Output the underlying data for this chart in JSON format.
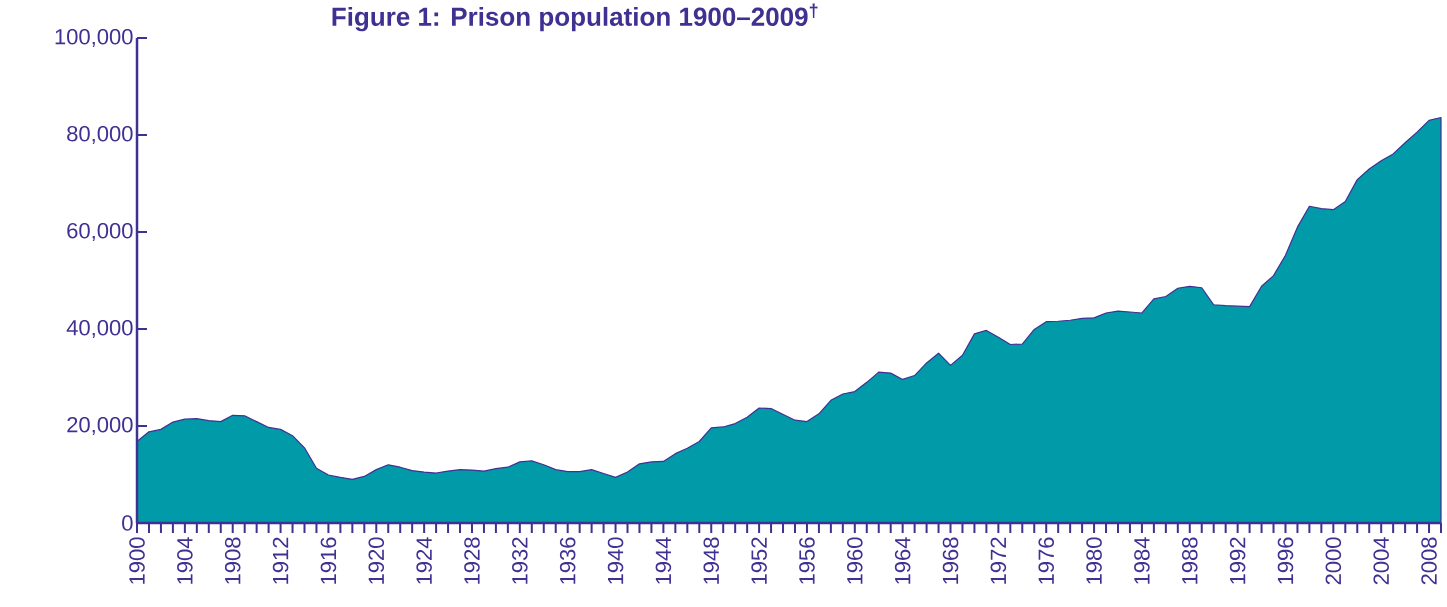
{
  "chart_data": {
    "type": "area",
    "title": "Figure 1: Prison population 1900–2009$^{†}$",
    "x": [
      1900,
      1901,
      1902,
      1903,
      1904,
      1905,
      1906,
      1907,
      1908,
      1909,
      1910,
      1911,
      1912,
      1913,
      1914,
      1915,
      1916,
      1917,
      1918,
      1919,
      1920,
      1921,
      1922,
      1923,
      1924,
      1925,
      1926,
      1927,
      1928,
      1929,
      1930,
      1931,
      1932,
      1933,
      1934,
      1935,
      1936,
      1937,
      1938,
      1939,
      1940,
      1941,
      1942,
      1943,
      1944,
      1945,
      1946,
      1947,
      1948,
      1949,
      1950,
      1951,
      1952,
      1953,
      1954,
      1955,
      1956,
      1957,
      1958,
      1959,
      1960,
      1961,
      1962,
      1963,
      1964,
      1965,
      1966,
      1967,
      1968,
      1969,
      1970,
      1971,
      1972,
      1973,
      1974,
      1975,
      1976,
      1977,
      1978,
      1979,
      1980,
      1981,
      1982,
      1983,
      1984,
      1985,
      1986,
      1987,
      1988,
      1989,
      1990,
      1991,
      1992,
      1993,
      1994,
      1995,
      1996,
      1997,
      1998,
      1999,
      2000,
      2001,
      2002,
      2003,
      2004,
      2005,
      2006,
      2007,
      2008,
      2009
    ],
    "series": [
      {
        "color": "#009aa9",
        "values": [
          16800,
          18800,
          19300,
          20800,
          21400,
          21500,
          21100,
          20900,
          22200,
          22100,
          20900,
          19700,
          19300,
          18000,
          15500,
          11300,
          9900,
          9400,
          9000,
          9600,
          11000,
          12000,
          11500,
          10800,
          10500,
          10300,
          10700,
          11000,
          10900,
          10700,
          11200,
          11500,
          12600,
          12800,
          12000,
          11000,
          10600,
          10600,
          11000,
          10200,
          9400,
          10500,
          12200,
          12600,
          12700,
          14300,
          15400,
          16800,
          19600,
          19800,
          20500,
          21800,
          23700,
          23600,
          22400,
          21200,
          20900,
          22500,
          25300,
          26600,
          27100,
          29000,
          31100,
          30900,
          29600,
          30400,
          33000,
          35000,
          32500,
          34600,
          39000,
          39700,
          38300,
          36800,
          36900,
          39900,
          41500,
          41600,
          41800,
          42200,
          42300,
          43300,
          43700,
          43500,
          43300,
          46200,
          46700,
          48400,
          48800,
          48500,
          45000,
          44800,
          44700,
          44600,
          48800,
          51000,
          55200,
          61000,
          65300,
          64800,
          64600,
          66300,
          70800,
          73000,
          74700,
          76100,
          78400,
          80600,
          83000,
          83600
        ]
      }
    ],
    "xlim": [
      1900,
      2009
    ],
    "ylim": [
      0,
      100000
    ],
    "xticks": [
      1900,
      {
        "value": 1901,
        "label": null
      },
      {
        "value": 1902,
        "label": null
      },
      {
        "value": 1903,
        "label": null
      },
      1904,
      {
        "value": 1905,
        "label": null
      },
      {
        "value": 1906,
        "label": null
      },
      {
        "value": 1907,
        "label": null
      },
      1908,
      {
        "value": 1909,
        "label": null
      },
      {
        "value": 1910,
        "label": null
      },
      {
        "value": 1911,
        "label": null
      },
      1912,
      {
        "value": 1913,
        "label": null
      },
      {
        "value": 1914,
        "label": null
      },
      {
        "value": 1915,
        "label": null
      },
      1916,
      {
        "value": 1917,
        "label": null
      },
      {
        "value": 1918,
        "label": null
      },
      {
        "value": 1919,
        "label": null
      },
      1920,
      {
        "value": 1921,
        "label": null
      },
      {
        "value": 1922,
        "label": null
      },
      {
        "value": 1923,
        "label": null
      },
      1924,
      {
        "value": 1925,
        "label": null
      },
      {
        "value": 1926,
        "label": null
      },
      {
        "value": 1927,
        "label": null
      },
      1928,
      {
        "value": 1929,
        "label": null
      },
      {
        "value": 1930,
        "label": null
      },
      {
        "value": 1931,
        "label": null
      },
      1932,
      {
        "value": 1933,
        "label": null
      },
      {
        "value": 1934,
        "label": null
      },
      {
        "value": 1935,
        "label": null
      },
      1936,
      {
        "value": 1937,
        "label": null
      },
      {
        "value": 1938,
        "label": null
      },
      {
        "value": 1939,
        "label": null
      },
      1940,
      {
        "value": 1941,
        "label": null
      },
      {
        "value": 1942,
        "label": null
      },
      {
        "value": 1943,
        "label": null
      },
      1944,
      {
        "value": 1945,
        "label": null
      },
      {
        "value": 1946,
        "label": null
      },
      {
        "value": 1947,
        "label": null
      },
      1948,
      {
        "value": 1949,
        "label": null
      },
      {
        "value": 1950,
        "label": null
      },
      {
        "value": 1951,
        "label": null
      },
      1952,
      {
        "value": 1953,
        "label": null
      },
      {
        "value": 1954,
        "label": null
      },
      {
        "value": 1955,
        "label": null
      },
      1956,
      {
        "value": 1957,
        "label": null
      },
      {
        "value": 1958,
        "label": null
      },
      {
        "value": 1959,
        "label": null
      },
      1960,
      {
        "value": 1961,
        "label": null
      },
      {
        "value": 1962,
        "label": null
      },
      {
        "value": 1963,
        "label": null
      },
      1964,
      {
        "value": 1965,
        "label": null
      },
      {
        "value": 1966,
        "label": null
      },
      {
        "value": 1967,
        "label": null
      },
      1968,
      {
        "value": 1969,
        "label": null
      },
      {
        "value": 1970,
        "label": null
      },
      {
        "value": 1971,
        "label": null
      },
      1972,
      {
        "value": 1973,
        "label": null
      },
      {
        "value": 1974,
        "label": null
      },
      {
        "value": 1975,
        "label": null
      },
      1976,
      {
        "value": 1977,
        "label": null
      },
      {
        "value": 1978,
        "label": null
      },
      {
        "value": 1979,
        "label": null
      },
      1980,
      {
        "value": 1981,
        "label": null
      },
      {
        "value": 1982,
        "label": null
      },
      {
        "value": 1983,
        "label": null
      },
      1984,
      {
        "value": 1985,
        "label": null
      },
      {
        "value": 1986,
        "label": null
      },
      {
        "value": 1987,
        "label": null
      },
      1988,
      {
        "value": 1989,
        "label": null
      },
      {
        "value": 1990,
        "label": null
      },
      {
        "value": 1991,
        "label": null
      },
      1992,
      {
        "value": 1993,
        "label": null
      },
      {
        "value": 1994,
        "label": null
      },
      {
        "value": 1995,
        "label": null
      },
      1996,
      {
        "value": 1997,
        "label": null
      },
      {
        "value": 1998,
        "label": null
      },
      {
        "value": 1999,
        "label": null
      },
      2000,
      {
        "value": 2001,
        "label": null
      },
      {
        "value": 2002,
        "label": null
      },
      {
        "value": 2003,
        "label": null
      },
      2004,
      {
        "value": 2005,
        "label": null
      },
      {
        "value": 2006,
        "label": null
      },
      {
        "value": 2007,
        "label": null
      },
      2008,
      {
        "value": 2009,
        "label": null
      }
    ],
    "yticks": [
      0,
      {
        "value": 20000,
        "label": "20,000"
      },
      {
        "value": 40000,
        "label": "40,000"
      },
      {
        "value": 60000,
        "label": "60,000"
      },
      {
        "value": 80000,
        "label": "80,000"
      },
      {
        "value": 100000,
        "label": "100,000"
      }
    ]
  }
}
